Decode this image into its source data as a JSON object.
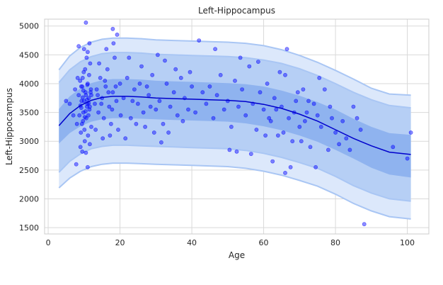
{
  "chart_data": {
    "type": "scatter",
    "title": "Left-Hippocampus",
    "xlabel": "Age",
    "ylabel": "Left-Hippocampus",
    "xlim": [
      -1,
      106
    ],
    "ylim": [
      1390,
      5120
    ],
    "x_ticks": [
      0,
      20,
      40,
      60,
      80,
      100
    ],
    "y_ticks": [
      1500,
      2000,
      2500,
      3000,
      3500,
      4000,
      4500,
      5000
    ],
    "grid": true,
    "legend": "none",
    "colors": {
      "points": "#0000ff",
      "median_line": "#0000cc",
      "band_outer": "#dce8fb",
      "band_middle": "#b6cff5",
      "band_inner": "#8fb3ef",
      "band_edge": "#a9c6f4",
      "grid": "#d9d9d9"
    },
    "centile_curves": {
      "x": [
        3,
        6,
        9,
        12,
        15,
        18,
        22,
        26,
        30,
        35,
        40,
        45,
        50,
        55,
        60,
        65,
        70,
        75,
        80,
        85,
        90,
        95,
        101
      ],
      "p50": [
        3270,
        3480,
        3620,
        3710,
        3760,
        3780,
        3780,
        3770,
        3750,
        3740,
        3730,
        3720,
        3710,
        3690,
        3640,
        3570,
        3470,
        3350,
        3200,
        3050,
        2920,
        2810,
        2770
      ],
      "p25": [
        2960,
        3140,
        3260,
        3340,
        3380,
        3400,
        3400,
        3390,
        3380,
        3370,
        3360,
        3350,
        3340,
        3310,
        3260,
        3190,
        3100,
        2990,
        2850,
        2700,
        2540,
        2420,
        2370
      ],
      "p75": [
        3560,
        3780,
        3920,
        4010,
        4060,
        4080,
        4080,
        4070,
        4050,
        4040,
        4030,
        4020,
        4010,
        3990,
        3950,
        3880,
        3790,
        3680,
        3550,
        3390,
        3250,
        3140,
        3110
      ],
      "p05": [
        2460,
        2650,
        2780,
        2870,
        2910,
        2930,
        2930,
        2920,
        2910,
        2900,
        2890,
        2880,
        2870,
        2840,
        2790,
        2720,
        2630,
        2530,
        2390,
        2230,
        2100,
        2000,
        1960
      ],
      "p95": [
        4020,
        4240,
        4380,
        4470,
        4520,
        4540,
        4540,
        4530,
        4510,
        4500,
        4490,
        4480,
        4470,
        4450,
        4410,
        4350,
        4260,
        4140,
        4000,
        3850,
        3720,
        3620,
        3580
      ],
      "p01": [
        2190,
        2360,
        2480,
        2560,
        2600,
        2620,
        2620,
        2610,
        2600,
        2590,
        2580,
        2570,
        2560,
        2530,
        2480,
        2410,
        2320,
        2220,
        2080,
        1920,
        1790,
        1690,
        1650
      ],
      "p99": [
        4240,
        4480,
        4630,
        4720,
        4770,
        4790,
        4790,
        4780,
        4760,
        4750,
        4740,
        4730,
        4720,
        4700,
        4660,
        4590,
        4490,
        4370,
        4230,
        4080,
        3920,
        3820,
        3800
      ]
    },
    "points": [
      [
        8.5,
        3800
      ],
      [
        9.0,
        3620
      ],
      [
        9.2,
        3950
      ],
      [
        9.4,
        3300
      ],
      [
        9.6,
        4100
      ],
      [
        9.8,
        3500
      ],
      [
        10.0,
        3700
      ],
      [
        10.1,
        3200
      ],
      [
        10.3,
        4250
      ],
      [
        10.4,
        3850
      ],
      [
        10.6,
        3400
      ],
      [
        10.8,
        3600
      ],
      [
        11.0,
        4000
      ],
      [
        11.1,
        3100
      ],
      [
        11.3,
        3750
      ],
      [
        11.5,
        3550
      ],
      [
        11.7,
        4350
      ],
      [
        11.9,
        3900
      ],
      [
        12.0,
        3250
      ],
      [
        8.7,
        3450
      ],
      [
        8.9,
        4050
      ],
      [
        9.1,
        3150
      ],
      [
        9.3,
        3700
      ],
      [
        9.5,
        3950
      ],
      [
        9.7,
        3350
      ],
      [
        9.9,
        4200
      ],
      [
        10.2,
        3000
      ],
      [
        10.5,
        3800
      ],
      [
        10.7,
        4450
      ],
      [
        10.9,
        3650
      ],
      [
        11.2,
        3450
      ],
      [
        11.4,
        4150
      ],
      [
        11.6,
        2950
      ],
      [
        11.8,
        3850
      ],
      [
        9.0,
        2900
      ],
      [
        9.5,
        2820
      ],
      [
        10.0,
        4600
      ],
      [
        10.5,
        2800
      ],
      [
        11.0,
        4550
      ],
      [
        11.5,
        4700
      ],
      [
        9.2,
        3580
      ],
      [
        9.8,
        3880
      ],
      [
        10.4,
        3520
      ],
      [
        10.9,
        3980
      ],
      [
        11.3,
        3660
      ],
      [
        9.6,
        3760
      ],
      [
        10.2,
        3420
      ],
      [
        10.8,
        3720
      ],
      [
        11.6,
        3600
      ],
      [
        12.0,
        3800
      ],
      [
        6.0,
        3650
      ],
      [
        7.0,
        3450
      ],
      [
        7.5,
        3900
      ],
      [
        8.0,
        3300
      ],
      [
        8.2,
        4100
      ],
      [
        5.0,
        3700
      ],
      [
        7.8,
        2600
      ],
      [
        11.0,
        2550
      ],
      [
        10.5,
        5060
      ],
      [
        8.5,
        4650
      ],
      [
        13,
        3650
      ],
      [
        13.5,
        3900
      ],
      [
        14,
        3500
      ],
      [
        14.5,
        4100
      ],
      [
        15,
        3750
      ],
      [
        15.5,
        3400
      ],
      [
        16,
        3950
      ],
      [
        16.5,
        4250
      ],
      [
        17,
        3600
      ],
      [
        17.5,
        3300
      ],
      [
        18,
        3850
      ],
      [
        18.5,
        4450
      ],
      [
        19,
        3700
      ],
      [
        19.5,
        3200
      ],
      [
        20,
        4000
      ],
      [
        13.2,
        3200
      ],
      [
        14.2,
        4350
      ],
      [
        15.2,
        3050
      ],
      [
        16.2,
        4600
      ],
      [
        17.2,
        3100
      ],
      [
        18.2,
        4700
      ],
      [
        19.2,
        4850
      ],
      [
        18.0,
        4950
      ],
      [
        20.2,
        3450
      ],
      [
        13.8,
        3800
      ],
      [
        14.8,
        3650
      ],
      [
        15.8,
        4050
      ],
      [
        16.8,
        3850
      ],
      [
        17.8,
        3550
      ],
      [
        18.8,
        3950
      ],
      [
        21,
        3750
      ],
      [
        22,
        4100
      ],
      [
        23,
        3400
      ],
      [
        24,
        3900
      ],
      [
        25,
        3650
      ],
      [
        26,
        4300
      ],
      [
        27,
        3250
      ],
      [
        28,
        3800
      ],
      [
        29,
        4150
      ],
      [
        30,
        3550
      ],
      [
        21.5,
        3050
      ],
      [
        22.5,
        4450
      ],
      [
        23.5,
        3700
      ],
      [
        24.5,
        3300
      ],
      [
        25.5,
        4000
      ],
      [
        26.5,
        3500
      ],
      [
        27.5,
        3950
      ],
      [
        28.5,
        3600
      ],
      [
        29.5,
        3150
      ],
      [
        30.5,
        4500
      ],
      [
        31,
        3700
      ],
      [
        32,
        3300
      ],
      [
        33,
        4000
      ],
      [
        34,
        3600
      ],
      [
        35,
        3850
      ],
      [
        36,
        3450
      ],
      [
        37,
        4100
      ],
      [
        38,
        3750
      ],
      [
        39,
        3550
      ],
      [
        40,
        3950
      ],
      [
        31.5,
        2980
      ],
      [
        32.5,
        4400
      ],
      [
        33.5,
        3150
      ],
      [
        35.5,
        4250
      ],
      [
        37.5,
        3350
      ],
      [
        39.5,
        4200
      ],
      [
        42,
        4750
      ],
      [
        41,
        3500
      ],
      [
        43,
        3850
      ],
      [
        44,
        3650
      ],
      [
        45,
        3950
      ],
      [
        46,
        3400
      ],
      [
        47,
        3800
      ],
      [
        48,
        4150
      ],
      [
        49,
        3550
      ],
      [
        50,
        3700
      ],
      [
        51,
        3250
      ],
      [
        52,
        4050
      ],
      [
        53,
        3600
      ],
      [
        54,
        3900
      ],
      [
        55,
        3450
      ],
      [
        56,
        4300
      ],
      [
        57,
        3650
      ],
      [
        58,
        3200
      ],
      [
        59,
        3850
      ],
      [
        60,
        3550
      ],
      [
        61,
        4000
      ],
      [
        62,
        3350
      ],
      [
        63,
        3750
      ],
      [
        64,
        3100
      ],
      [
        65,
        3600
      ],
      [
        66,
        4150
      ],
      [
        67,
        3400
      ],
      [
        68,
        3000
      ],
      [
        69,
        3700
      ],
      [
        70,
        3250
      ],
      [
        71,
        3900
      ],
      [
        72,
        3500
      ],
      [
        73,
        2900
      ],
      [
        74,
        3650
      ],
      [
        50.5,
        2850
      ],
      [
        52.5,
        2820
      ],
      [
        56.5,
        2780
      ],
      [
        46.5,
        4600
      ],
      [
        53.5,
        4450
      ],
      [
        58.5,
        4380
      ],
      [
        62.5,
        2650
      ],
      [
        64.5,
        4200
      ],
      [
        66.5,
        4600
      ],
      [
        67.5,
        2550
      ],
      [
        60.5,
        3100
      ],
      [
        61.5,
        3400
      ],
      [
        63.5,
        3550
      ],
      [
        65.5,
        3150
      ],
      [
        66.0,
        2450
      ],
      [
        68.5,
        3500
      ],
      [
        69.5,
        3850
      ],
      [
        70.5,
        3000
      ],
      [
        71.5,
        3350
      ],
      [
        72.5,
        3700
      ],
      [
        75,
        3450
      ],
      [
        76,
        3250
      ],
      [
        77,
        3900
      ],
      [
        78,
        2850
      ],
      [
        79,
        3400
      ],
      [
        80,
        3150
      ],
      [
        81,
        2950
      ],
      [
        82,
        3350
      ],
      [
        83,
        3050
      ],
      [
        84,
        2850
      ],
      [
        75.5,
        4100
      ],
      [
        74.5,
        2550
      ],
      [
        86,
        3400
      ],
      [
        87,
        3200
      ],
      [
        88,
        1560
      ],
      [
        96,
        2900
      ],
      [
        100,
        2700
      ],
      [
        101,
        3150
      ],
      [
        85,
        3600
      ],
      [
        78.5,
        3600
      ]
    ]
  }
}
